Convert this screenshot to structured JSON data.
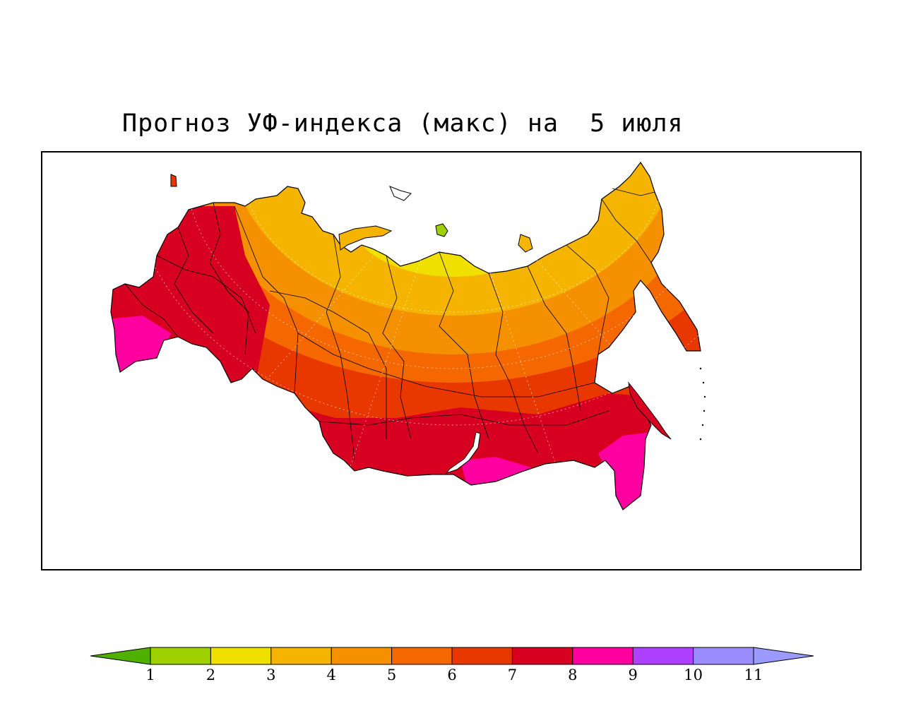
{
  "title": "Прогноз УФ-индекса (макс) на  5 июля",
  "colorbar": {
    "under_color": "#4fb000",
    "over_color": "#9b9bff",
    "bins": [
      {
        "from": 1,
        "to": 2,
        "color": "#9fd000"
      },
      {
        "from": 2,
        "to": 3,
        "color": "#f0e000"
      },
      {
        "from": 3,
        "to": 4,
        "color": "#f5b400"
      },
      {
        "from": 4,
        "to": 5,
        "color": "#f59000"
      },
      {
        "from": 5,
        "to": 6,
        "color": "#f56800"
      },
      {
        "from": 6,
        "to": 7,
        "color": "#e83800"
      },
      {
        "from": 7,
        "to": 8,
        "color": "#d80020"
      },
      {
        "from": 8,
        "to": 9,
        "color": "#ff00a0"
      },
      {
        "from": 9,
        "to": 10,
        "color": "#b040ff"
      },
      {
        "from": 10,
        "to": 11,
        "color": "#9a8cff"
      }
    ],
    "labels": [
      "1",
      "2",
      "3",
      "4",
      "5",
      "6",
      "7",
      "8",
      "9",
      "10",
      "11"
    ]
  },
  "map": {
    "region": "Russia",
    "zone_colors": {
      "uv2": "#9fd000",
      "uv3": "#f0e000",
      "uv4": "#f5b400",
      "uv5": "#f59000",
      "uv6": "#f56800",
      "uv7": "#e83800",
      "uv8": "#d80020",
      "uv9": "#ff00a0"
    },
    "boundary_color": "#000000",
    "grid_color": "#ffffff",
    "grid": "dotted"
  }
}
